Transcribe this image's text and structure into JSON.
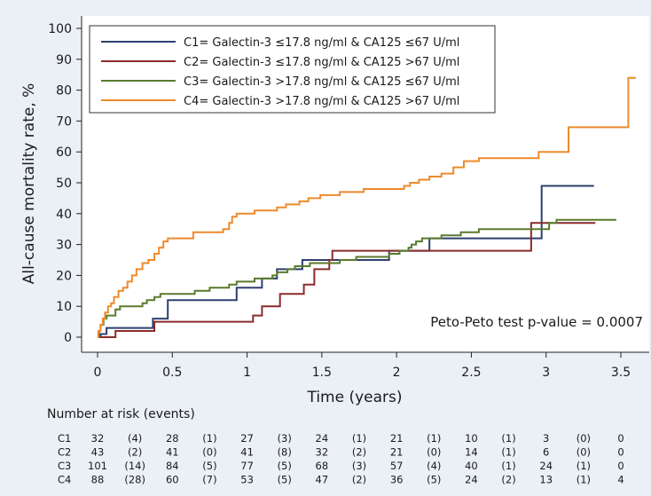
{
  "chart_data": {
    "type": "line",
    "step": true,
    "ylabel": "All-cause mortality rate, %",
    "xlabel": "Time (years)",
    "xlim": [
      0,
      3.7
    ],
    "ylim": [
      0,
      100
    ],
    "x_ticks": [
      0,
      0.5,
      1,
      1.5,
      2,
      2.5,
      3,
      3.5
    ],
    "x_tick_labels": [
      "0",
      "0.5",
      "1",
      "1.5",
      "2",
      "2.5",
      "3",
      "3.5"
    ],
    "y_ticks": [
      0,
      10,
      20,
      30,
      40,
      50,
      60,
      70,
      80,
      90,
      100
    ],
    "y_tick_labels": [
      "0",
      "10",
      "20",
      "30",
      "40",
      "50",
      "60",
      "70",
      "80",
      "90",
      "100"
    ],
    "grid": false,
    "legend_position": "top-left",
    "annotation": "Peto-Peto test p-value = 0.0007",
    "series": [
      {
        "name": "C1= Galectin-3 ≤17.8 ng/ml & CA125 ≤67 U/ml",
        "color": "#2e3f6e",
        "points": [
          [
            0,
            0
          ],
          [
            0.02,
            0
          ],
          [
            0.02,
            1
          ],
          [
            0.06,
            1
          ],
          [
            0.06,
            3
          ],
          [
            0.37,
            3
          ],
          [
            0.37,
            6
          ],
          [
            0.47,
            6
          ],
          [
            0.47,
            12
          ],
          [
            0.93,
            12
          ],
          [
            0.93,
            16
          ],
          [
            1.1,
            16
          ],
          [
            1.1,
            19
          ],
          [
            1.2,
            19
          ],
          [
            1.2,
            22
          ],
          [
            1.37,
            22
          ],
          [
            1.37,
            25
          ],
          [
            1.95,
            25
          ],
          [
            1.95,
            28
          ],
          [
            2.22,
            28
          ],
          [
            2.22,
            32
          ],
          [
            2.97,
            32
          ],
          [
            2.97,
            49
          ],
          [
            3.32,
            49
          ]
        ]
      },
      {
        "name": "C2= Galectin-3 ≤17.8 ng/ml & CA125 >67 U/ml",
        "color": "#8b2b2b",
        "points": [
          [
            0,
            0
          ],
          [
            0.12,
            0
          ],
          [
            0.12,
            2
          ],
          [
            0.38,
            2
          ],
          [
            0.38,
            5
          ],
          [
            1.04,
            5
          ],
          [
            1.04,
            7
          ],
          [
            1.1,
            7
          ],
          [
            1.1,
            10
          ],
          [
            1.22,
            10
          ],
          [
            1.22,
            14
          ],
          [
            1.38,
            14
          ],
          [
            1.38,
            17
          ],
          [
            1.45,
            17
          ],
          [
            1.45,
            22
          ],
          [
            1.55,
            22
          ],
          [
            1.55,
            25
          ],
          [
            1.57,
            25
          ],
          [
            1.57,
            28
          ],
          [
            2.9,
            28
          ],
          [
            2.9,
            37
          ],
          [
            3.33,
            37
          ]
        ]
      },
      {
        "name": "C3= Galectin-3 >17.8 ng/ml & CA125 ≤67 U/ml",
        "color": "#5a7a2e",
        "points": [
          [
            0,
            0
          ],
          [
            0.01,
            0
          ],
          [
            0.01,
            2
          ],
          [
            0.02,
            2
          ],
          [
            0.02,
            4
          ],
          [
            0.04,
            4
          ],
          [
            0.04,
            6
          ],
          [
            0.06,
            6
          ],
          [
            0.06,
            7
          ],
          [
            0.12,
            7
          ],
          [
            0.12,
            9
          ],
          [
            0.15,
            9
          ],
          [
            0.15,
            10
          ],
          [
            0.3,
            10
          ],
          [
            0.3,
            11
          ],
          [
            0.33,
            11
          ],
          [
            0.33,
            12
          ],
          [
            0.38,
            12
          ],
          [
            0.38,
            13
          ],
          [
            0.42,
            13
          ],
          [
            0.42,
            14
          ],
          [
            0.65,
            14
          ],
          [
            0.65,
            15
          ],
          [
            0.75,
            15
          ],
          [
            0.75,
            16
          ],
          [
            0.88,
            16
          ],
          [
            0.88,
            17
          ],
          [
            0.93,
            17
          ],
          [
            0.93,
            18
          ],
          [
            1.05,
            18
          ],
          [
            1.05,
            19
          ],
          [
            1.17,
            19
          ],
          [
            1.17,
            20
          ],
          [
            1.2,
            20
          ],
          [
            1.2,
            21
          ],
          [
            1.27,
            21
          ],
          [
            1.27,
            22
          ],
          [
            1.32,
            22
          ],
          [
            1.32,
            23
          ],
          [
            1.42,
            23
          ],
          [
            1.42,
            24
          ],
          [
            1.62,
            24
          ],
          [
            1.62,
            25
          ],
          [
            1.73,
            25
          ],
          [
            1.73,
            26
          ],
          [
            1.95,
            26
          ],
          [
            1.95,
            27
          ],
          [
            2.02,
            27
          ],
          [
            2.02,
            28
          ],
          [
            2.08,
            28
          ],
          [
            2.08,
            29
          ],
          [
            2.1,
            29
          ],
          [
            2.1,
            30
          ],
          [
            2.13,
            30
          ],
          [
            2.13,
            31
          ],
          [
            2.17,
            31
          ],
          [
            2.17,
            32
          ],
          [
            2.3,
            32
          ],
          [
            2.3,
            33
          ],
          [
            2.43,
            33
          ],
          [
            2.43,
            34
          ],
          [
            2.55,
            34
          ],
          [
            2.55,
            35
          ],
          [
            3.02,
            35
          ],
          [
            3.02,
            37
          ],
          [
            3.07,
            37
          ],
          [
            3.07,
            38
          ],
          [
            3.47,
            38
          ]
        ]
      },
      {
        "name": "C4= Galectin-3 >17.8 ng/ml & CA125 >67 U/ml",
        "color": "#ee8a2c",
        "points": [
          [
            0,
            0
          ],
          [
            0.005,
            0
          ],
          [
            0.005,
            2
          ],
          [
            0.02,
            2
          ],
          [
            0.02,
            4
          ],
          [
            0.035,
            4
          ],
          [
            0.035,
            6
          ],
          [
            0.05,
            6
          ],
          [
            0.05,
            8
          ],
          [
            0.07,
            8
          ],
          [
            0.07,
            10
          ],
          [
            0.09,
            10
          ],
          [
            0.09,
            11
          ],
          [
            0.11,
            11
          ],
          [
            0.11,
            13
          ],
          [
            0.14,
            13
          ],
          [
            0.14,
            15
          ],
          [
            0.17,
            15
          ],
          [
            0.17,
            16
          ],
          [
            0.2,
            16
          ],
          [
            0.2,
            18
          ],
          [
            0.23,
            18
          ],
          [
            0.23,
            20
          ],
          [
            0.26,
            20
          ],
          [
            0.26,
            22
          ],
          [
            0.3,
            22
          ],
          [
            0.3,
            24
          ],
          [
            0.34,
            24
          ],
          [
            0.34,
            25
          ],
          [
            0.38,
            25
          ],
          [
            0.38,
            27
          ],
          [
            0.41,
            27
          ],
          [
            0.41,
            29
          ],
          [
            0.44,
            29
          ],
          [
            0.44,
            31
          ],
          [
            0.47,
            31
          ],
          [
            0.47,
            32
          ],
          [
            0.64,
            32
          ],
          [
            0.64,
            34
          ],
          [
            0.84,
            34
          ],
          [
            0.84,
            35
          ],
          [
            0.88,
            35
          ],
          [
            0.88,
            37
          ],
          [
            0.9,
            37
          ],
          [
            0.9,
            39
          ],
          [
            0.93,
            39
          ],
          [
            0.93,
            40
          ],
          [
            1.05,
            40
          ],
          [
            1.05,
            41
          ],
          [
            1.2,
            41
          ],
          [
            1.2,
            42
          ],
          [
            1.26,
            42
          ],
          [
            1.26,
            43
          ],
          [
            1.35,
            43
          ],
          [
            1.35,
            44
          ],
          [
            1.41,
            44
          ],
          [
            1.41,
            45
          ],
          [
            1.49,
            45
          ],
          [
            1.49,
            46
          ],
          [
            1.62,
            46
          ],
          [
            1.62,
            47
          ],
          [
            1.78,
            47
          ],
          [
            1.78,
            48
          ],
          [
            2.05,
            48
          ],
          [
            2.05,
            49
          ],
          [
            2.09,
            49
          ],
          [
            2.09,
            50
          ],
          [
            2.15,
            50
          ],
          [
            2.15,
            51
          ],
          [
            2.22,
            51
          ],
          [
            2.22,
            52
          ],
          [
            2.3,
            52
          ],
          [
            2.3,
            53
          ],
          [
            2.38,
            53
          ],
          [
            2.38,
            55
          ],
          [
            2.45,
            55
          ],
          [
            2.45,
            57
          ],
          [
            2.55,
            57
          ],
          [
            2.55,
            58
          ],
          [
            2.95,
            58
          ],
          [
            2.95,
            60
          ],
          [
            3.15,
            60
          ],
          [
            3.15,
            68
          ],
          [
            3.55,
            68
          ],
          [
            3.55,
            84
          ],
          [
            3.6,
            84
          ]
        ]
      }
    ],
    "risk_table": {
      "title": "Number at risk (events)",
      "rows": [
        {
          "label": "C1",
          "values": [
            "32",
            "(4)",
            "28",
            "(1)",
            "27",
            "(3)",
            "24",
            "(1)",
            "21",
            "(1)",
            "10",
            "(1)",
            "3",
            "(0)",
            "0"
          ]
        },
        {
          "label": "C2",
          "values": [
            "43",
            "(2)",
            "41",
            "(0)",
            "41",
            "(8)",
            "32",
            "(2)",
            "21",
            "(0)",
            "14",
            "(1)",
            "6",
            "(0)",
            "0"
          ]
        },
        {
          "label": "C3",
          "values": [
            "101",
            "(14)",
            "84",
            "(5)",
            "77",
            "(5)",
            "68",
            "(3)",
            "57",
            "(4)",
            "40",
            "(1)",
            "24",
            "(1)",
            "0"
          ]
        },
        {
          "label": "C4",
          "values": [
            "88",
            "(28)",
            "60",
            "(7)",
            "53",
            "(5)",
            "47",
            "(2)",
            "36",
            "(5)",
            "24",
            "(2)",
            "13",
            "(1)",
            "4"
          ]
        }
      ]
    }
  }
}
